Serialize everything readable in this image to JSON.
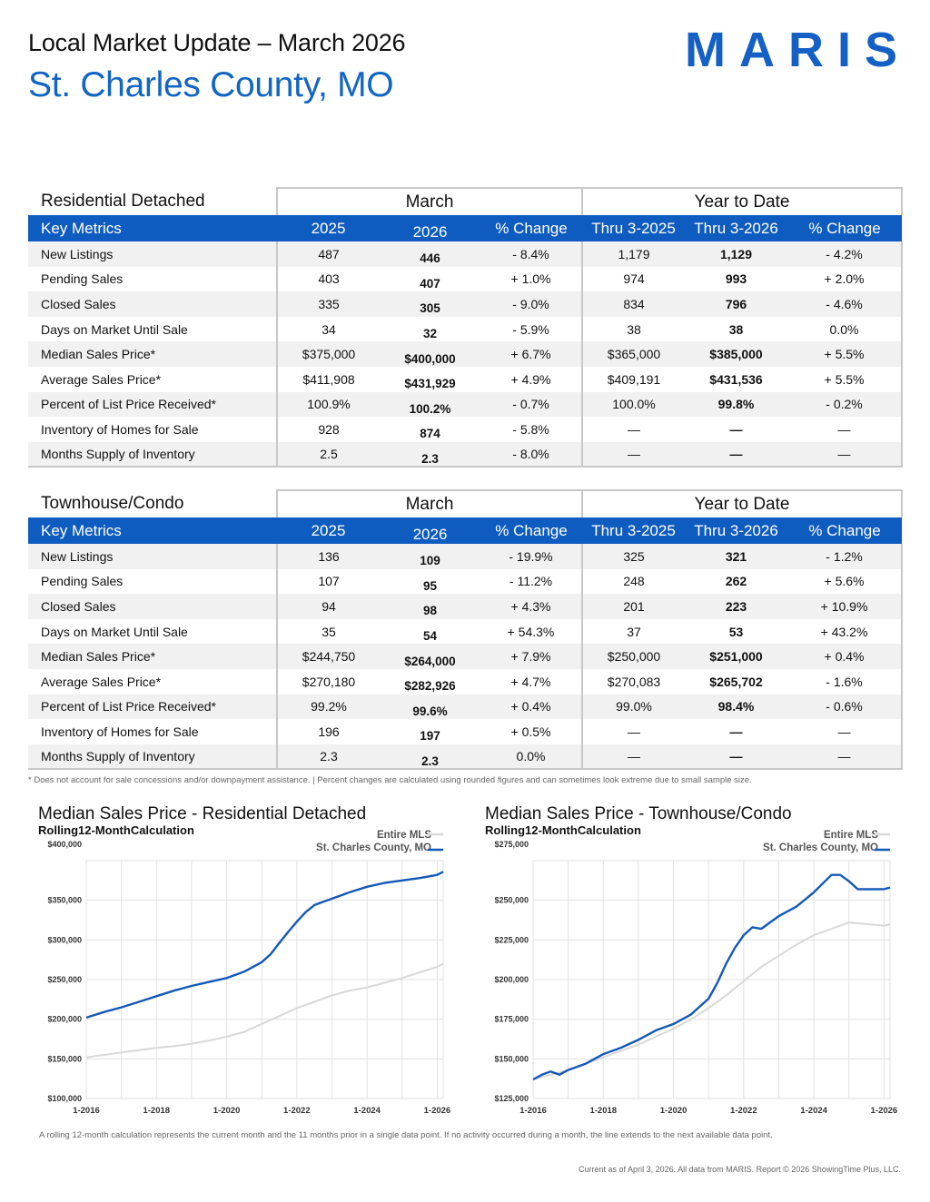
{
  "header": {
    "subtitle": "Local Market Update – March 2026",
    "title": "St. Charles County, MO",
    "logo": "MARIS"
  },
  "residential": {
    "section": "Residential Detached",
    "month_group": "March",
    "ytd_group": "Year to Date",
    "headers": [
      "Key Metrics",
      "2025",
      "2026",
      "% Change",
      "Thru 3-2025",
      "Thru 3-2026",
      "% Change"
    ],
    "rows": [
      {
        "metric": "New Listings",
        "m2025": "487",
        "m2026": "446",
        "mchg": "- 8.4%",
        "y2025": "1,179",
        "y2026": "1,129",
        "ychg": "- 4.2%"
      },
      {
        "metric": "Pending Sales",
        "m2025": "403",
        "m2026": "407",
        "mchg": "+ 1.0%",
        "y2025": "974",
        "y2026": "993",
        "ychg": "+ 2.0%"
      },
      {
        "metric": "Closed Sales",
        "m2025": "335",
        "m2026": "305",
        "mchg": "- 9.0%",
        "y2025": "834",
        "y2026": "796",
        "ychg": "- 4.6%"
      },
      {
        "metric": "Days on Market Until Sale",
        "m2025": "34",
        "m2026": "32",
        "mchg": "- 5.9%",
        "y2025": "38",
        "y2026": "38",
        "ychg": "0.0%"
      },
      {
        "metric": "Median Sales Price*",
        "m2025": "$375,000",
        "m2026": "$400,000",
        "mchg": "+ 6.7%",
        "y2025": "$365,000",
        "y2026": "$385,000",
        "ychg": "+ 5.5%"
      },
      {
        "metric": "Average Sales Price*",
        "m2025": "$411,908",
        "m2026": "$431,929",
        "mchg": "+ 4.9%",
        "y2025": "$409,191",
        "y2026": "$431,536",
        "ychg": "+ 5.5%"
      },
      {
        "metric": "Percent of List Price Received*",
        "m2025": "100.9%",
        "m2026": "100.2%",
        "mchg": "- 0.7%",
        "y2025": "100.0%",
        "y2026": "99.8%",
        "ychg": "- 0.2%"
      },
      {
        "metric": "Inventory of Homes for Sale",
        "m2025": "928",
        "m2026": "874",
        "mchg": "- 5.8%",
        "y2025": "—",
        "y2026": "—",
        "ychg": "—"
      },
      {
        "metric": "Months Supply of Inventory",
        "m2025": "2.5",
        "m2026": "2.3",
        "mchg": "- 8.0%",
        "y2025": "—",
        "y2026": "—",
        "ychg": "—"
      }
    ]
  },
  "townhouse": {
    "section": "Townhouse/Condo",
    "month_group": "March",
    "ytd_group": "Year to Date",
    "headers": [
      "Key Metrics",
      "2025",
      "2026",
      "% Change",
      "Thru 3-2025",
      "Thru 3-2026",
      "% Change"
    ],
    "rows": [
      {
        "metric": "New Listings",
        "m2025": "136",
        "m2026": "109",
        "mchg": "- 19.9%",
        "y2025": "325",
        "y2026": "321",
        "ychg": "- 1.2%"
      },
      {
        "metric": "Pending Sales",
        "m2025": "107",
        "m2026": "95",
        "mchg": "- 11.2%",
        "y2025": "248",
        "y2026": "262",
        "ychg": "+ 5.6%"
      },
      {
        "metric": "Closed Sales",
        "m2025": "94",
        "m2026": "98",
        "mchg": "+ 4.3%",
        "y2025": "201",
        "y2026": "223",
        "ychg": "+ 10.9%"
      },
      {
        "metric": "Days on Market Until Sale",
        "m2025": "35",
        "m2026": "54",
        "mchg": "+ 54.3%",
        "y2025": "37",
        "y2026": "53",
        "ychg": "+ 43.2%"
      },
      {
        "metric": "Median Sales Price*",
        "m2025": "$244,750",
        "m2026": "$264,000",
        "mchg": "+ 7.9%",
        "y2025": "$250,000",
        "y2026": "$251,000",
        "ychg": "+ 0.4%"
      },
      {
        "metric": "Average Sales Price*",
        "m2025": "$270,180",
        "m2026": "$282,926",
        "mchg": "+ 4.7%",
        "y2025": "$270,083",
        "y2026": "$265,702",
        "ychg": "- 1.6%"
      },
      {
        "metric": "Percent of List Price Received*",
        "m2025": "99.2%",
        "m2026": "99.6%",
        "mchg": "+ 0.4%",
        "y2025": "99.0%",
        "y2026": "98.4%",
        "ychg": "- 0.6%"
      },
      {
        "metric": "Inventory of Homes for Sale",
        "m2025": "196",
        "m2026": "197",
        "mchg": "+ 0.5%",
        "y2025": "—",
        "y2026": "—",
        "ychg": "—"
      },
      {
        "metric": "Months Supply of Inventory",
        "m2025": "2.3",
        "m2026": "2.3",
        "mchg": "0.0%",
        "y2025": "—",
        "y2026": "—",
        "ychg": "—"
      }
    ]
  },
  "footnote": "* Does not account for sale concessions and/or downpayment assistance. | Percent changes are calculated using rounded figures and can sometimes look extreme due to small sample size.",
  "colors": {
    "county": "#1558b8",
    "mls": "#d8d8d8",
    "header_bg": "#0f5cc0"
  },
  "chart_data": [
    {
      "type": "line",
      "title": "Median Sales Price - Residential Detached",
      "subtitle": "Rolling12-MonthCalculation",
      "legend": [
        "Entire MLS",
        "St. Charles County, MO"
      ],
      "x_ticks": [
        "1-2016",
        "1-2018",
        "1-2020",
        "1-2022",
        "1-2024",
        "1-2026"
      ],
      "x_range": [
        2016,
        2026.17
      ],
      "ylim": [
        100000,
        400000
      ],
      "y_ticks": [
        100000,
        150000,
        200000,
        250000,
        300000,
        350000,
        400000
      ],
      "y_tick_labels": [
        "$100,000",
        "$150,000",
        "$200,000",
        "$250,000",
        "$300,000",
        "$350,000",
        "$400,000"
      ],
      "series": [
        {
          "name": "Entire MLS",
          "x": [
            2016,
            2016.5,
            2017,
            2017.5,
            2018,
            2018.5,
            2019,
            2019.5,
            2020,
            2020.5,
            2021,
            2021.5,
            2022,
            2022.5,
            2023,
            2023.5,
            2024,
            2024.5,
            2025,
            2025.5,
            2026,
            2026.17
          ],
          "y": [
            152000,
            155000,
            158000,
            161000,
            164000,
            166000,
            169000,
            173000,
            178000,
            184000,
            194000,
            204000,
            214000,
            222000,
            230000,
            236000,
            240000,
            246000,
            252000,
            259000,
            266000,
            270000
          ]
        },
        {
          "name": "St. Charles County, MO",
          "x": [
            2016,
            2016.5,
            2017,
            2017.5,
            2018,
            2018.5,
            2019,
            2019.5,
            2020,
            2020.5,
            2021,
            2021.25,
            2021.5,
            2021.75,
            2022,
            2022.25,
            2022.5,
            2022.75,
            2023,
            2023.5,
            2024,
            2024.5,
            2025,
            2025.5,
            2026,
            2026.17
          ],
          "y": [
            202000,
            209000,
            215000,
            222000,
            229000,
            236000,
            242000,
            247000,
            252000,
            260000,
            272000,
            282000,
            296000,
            310000,
            323000,
            335000,
            344000,
            348000,
            352000,
            360000,
            367000,
            372000,
            375000,
            378000,
            382000,
            386000
          ]
        }
      ]
    },
    {
      "type": "line",
      "title": "Median Sales Price - Townhouse/Condo",
      "subtitle": "Rolling12-MonthCalculation",
      "legend": [
        "Entire MLS",
        "St. Charles County, MO"
      ],
      "x_ticks": [
        "1-2016",
        "1-2018",
        "1-2020",
        "1-2022",
        "1-2024",
        "1-2026"
      ],
      "x_range": [
        2016,
        2026.17
      ],
      "ylim": [
        125000,
        275000
      ],
      "y_ticks": [
        125000,
        150000,
        175000,
        200000,
        225000,
        250000,
        275000
      ],
      "y_tick_labels": [
        "$125,000",
        "$150,000",
        "$175,000",
        "$200,000",
        "$225,000",
        "$250,000",
        "$275,000"
      ],
      "series": [
        {
          "name": "Entire MLS",
          "x": [
            2016,
            2016.5,
            2017,
            2017.5,
            2018,
            2018.5,
            2019,
            2019.5,
            2020,
            2020.5,
            2021,
            2021.5,
            2022,
            2022.5,
            2023,
            2023.5,
            2024,
            2024.5,
            2025,
            2025.5,
            2026,
            2026.17
          ],
          "y": [
            137000,
            140000,
            143000,
            147000,
            151000,
            155000,
            159000,
            164000,
            169000,
            175000,
            182000,
            190000,
            199000,
            208000,
            215000,
            222000,
            228000,
            232000,
            236000,
            235000,
            234000,
            235000
          ]
        },
        {
          "name": "St. Charles County, MO",
          "x": [
            2016,
            2016.25,
            2016.5,
            2016.75,
            2017,
            2017.5,
            2018,
            2018.5,
            2019,
            2019.5,
            2020,
            2020.5,
            2021,
            2021.25,
            2021.5,
            2021.75,
            2022,
            2022.25,
            2022.5,
            2022.75,
            2023,
            2023.5,
            2024,
            2024.5,
            2024.75,
            2025,
            2025.25,
            2025.5,
            2026,
            2026.17
          ],
          "y": [
            137000,
            140000,
            142000,
            140000,
            143000,
            147000,
            153000,
            157000,
            162000,
            168000,
            172000,
            178000,
            188000,
            198000,
            210000,
            220000,
            228000,
            233000,
            232000,
            236000,
            240000,
            246000,
            255000,
            266000,
            266000,
            262000,
            257000,
            257000,
            257000,
            258000
          ]
        }
      ]
    }
  ],
  "rolling_note": "A rolling 12-month calculation represents the current month and the 11 months prior in a single data point. If no activity occurred during a month, the line extends to the next available data point.",
  "current_note": "Current as of April 3, 2026. All data from MARIS. Report © 2026 ShowingTime Plus, LLC."
}
